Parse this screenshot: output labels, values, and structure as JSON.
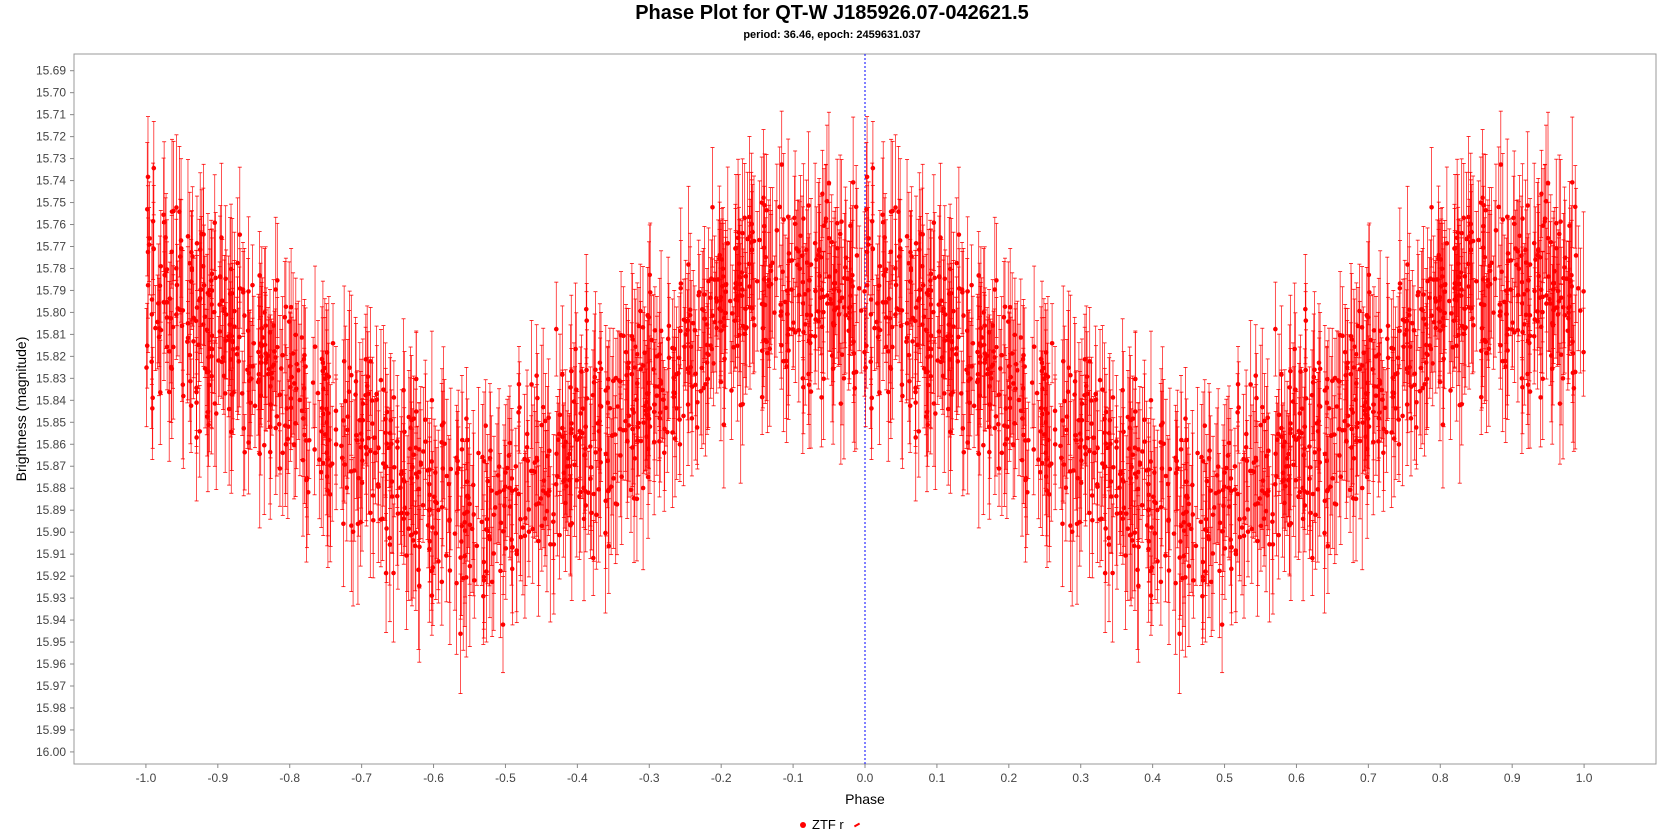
{
  "chart_data": {
    "type": "scatter",
    "title": "Phase Plot for QT-W J185926.07-042621.5",
    "subtitle": "period: 36.46, epoch: 2459631.037",
    "xlabel": "Phase",
    "ylabel": "Brightness (magnitude)",
    "xlim": [
      -1.1,
      1.1
    ],
    "ylim": [
      15.6824,
      16.0055
    ],
    "y_inverted": true,
    "x_ticks": [
      "-1.0",
      "-0.9",
      "-0.8",
      "-0.7",
      "-0.6",
      "-0.5",
      "-0.4",
      "-0.3",
      "-0.2",
      "-0.1",
      "0.0",
      "0.1",
      "0.2",
      "0.3",
      "0.4",
      "0.5",
      "0.6",
      "0.7",
      "0.8",
      "0.9",
      "1.0"
    ],
    "y_ticks": [
      "15.69",
      "15.70",
      "15.71",
      "15.72",
      "15.73",
      "15.74",
      "15.75",
      "15.76",
      "15.77",
      "15.78",
      "15.79",
      "15.80",
      "15.81",
      "15.82",
      "15.83",
      "15.84",
      "15.85",
      "15.86",
      "15.87",
      "15.88",
      "15.89",
      "15.90",
      "15.91",
      "15.92",
      "15.93",
      "15.94",
      "15.95",
      "15.96",
      "15.97",
      "15.98",
      "15.99",
      "16.00"
    ],
    "grid": false,
    "zero_line": {
      "x": 0.0,
      "style": "dotted",
      "color": "#0000ff"
    },
    "legend_placement": "bottom-center",
    "series": [
      {
        "name": "ZTF r",
        "color": "#ff0000",
        "error_bars": true,
        "typical_error": 0.03,
        "mean_curve": [
          {
            "x": 0.0,
            "y": 15.79
          },
          {
            "x": 0.1,
            "y": 15.81
          },
          {
            "x": 0.22,
            "y": 15.84
          },
          {
            "x": 0.3,
            "y": 15.86
          },
          {
            "x": 0.4,
            "y": 15.88
          },
          {
            "x": 0.48,
            "y": 15.9
          },
          {
            "x": 0.52,
            "y": 15.88
          },
          {
            "x": 0.6,
            "y": 15.86
          },
          {
            "x": 0.7,
            "y": 15.84
          },
          {
            "x": 0.8,
            "y": 15.8
          },
          {
            "x": 0.85,
            "y": 15.79
          },
          {
            "x": 0.92,
            "y": 15.79
          },
          {
            "x": 1.0,
            "y": 15.79
          }
        ],
        "scatter": 0.045,
        "points_per_cycle": 1100
      }
    ]
  },
  "legend": {
    "items": [
      {
        "label": "ZTF r"
      }
    ]
  }
}
